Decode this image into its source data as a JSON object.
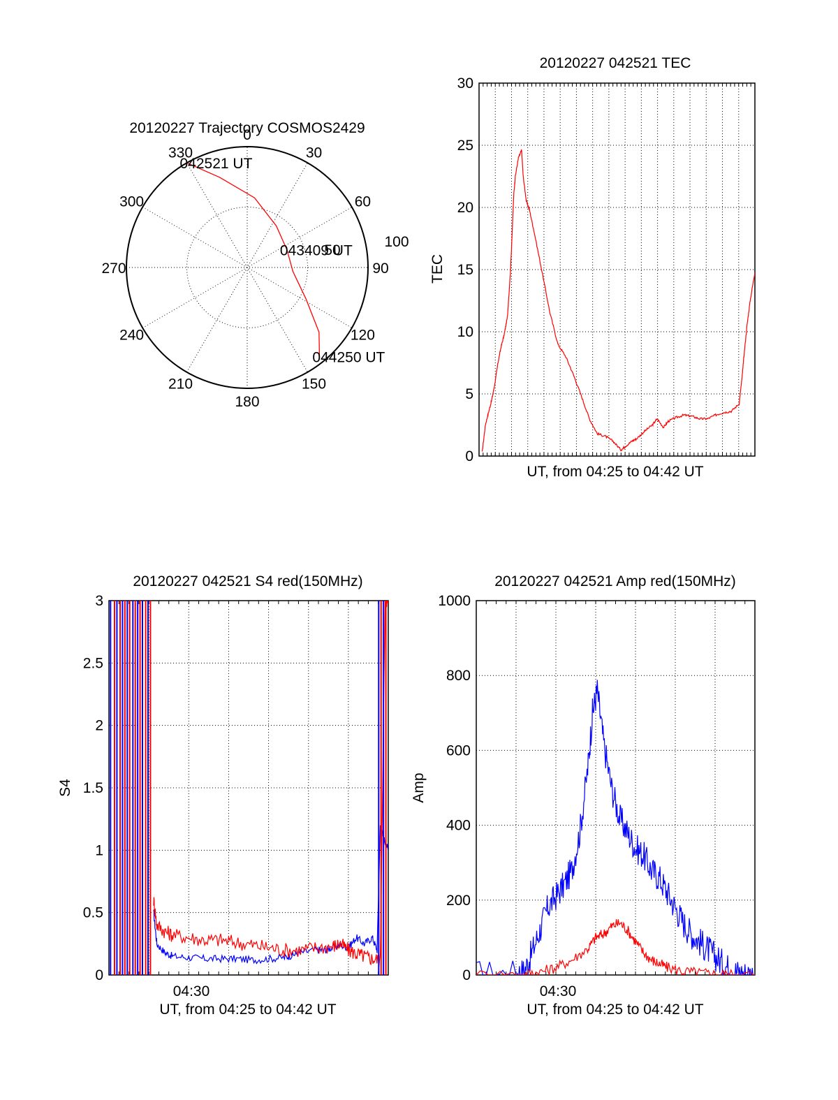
{
  "colors": {
    "red": "#ff0000",
    "blue": "#0000ff",
    "axis": "#000000"
  },
  "chart_data": [
    {
      "id": "trajectory",
      "type": "polar",
      "title": "20120227 Trajectory COSMOS2429",
      "azimuth_labels": [
        "0",
        "30",
        "60",
        "90",
        "120",
        "150",
        "180",
        "210",
        "240",
        "270",
        "300",
        "330"
      ],
      "radial_labels": [
        "50",
        "100"
      ],
      "grid": true,
      "track": [
        {
          "az": 330,
          "zen": 100
        },
        {
          "az": 343,
          "zen": 78
        },
        {
          "az": 6,
          "zen": 58
        },
        {
          "az": 35,
          "zen": 42
        },
        {
          "az": 66,
          "zen": 36
        },
        {
          "az": 95,
          "zen": 38
        },
        {
          "az": 118,
          "zen": 55
        },
        {
          "az": 132,
          "zen": 80
        },
        {
          "az": 141,
          "zen": 95
        }
      ],
      "annotations": [
        {
          "text": "042521 UT",
          "az": 330,
          "zen": 100
        },
        {
          "text": "043409 UT",
          "az": 66,
          "zen": 36
        },
        {
          "text": "044250 UT",
          "az": 141,
          "zen": 95
        }
      ]
    },
    {
      "id": "tec",
      "type": "line",
      "title": "20120227 042521 TEC",
      "xlabel": "UT, from 04:25 to 04:42 UT",
      "ylabel": "TEC",
      "xlim": [
        0,
        17.5
      ],
      "ylim": [
        0,
        30
      ],
      "yticks": [
        "0",
        "5",
        "10",
        "15",
        "20",
        "25",
        "30"
      ],
      "grid": true,
      "series": [
        {
          "color": "#ff0000",
          "x": [
            0.2,
            0.4,
            0.6,
            0.8,
            1.0,
            1.2,
            1.4,
            1.6,
            1.8,
            2.0,
            2.2,
            2.3,
            2.5,
            2.7,
            2.8,
            3.0,
            3.2,
            3.5,
            4.0,
            4.5,
            5.0,
            5.5,
            6.0,
            6.5,
            7.0,
            7.5,
            8.0,
            8.5,
            9.0,
            9.3,
            9.7,
            10.0,
            10.5,
            11.0,
            11.3,
            11.7,
            12.0,
            12.5,
            13.0,
            13.5,
            14.0,
            14.5,
            15.0,
            15.5,
            16.0,
            16.5,
            16.7,
            16.8,
            17.0,
            17.2,
            17.5
          ],
          "y": [
            0.3,
            2.5,
            3.5,
            4.5,
            5.8,
            7.5,
            8.8,
            9.8,
            11.2,
            15.0,
            21.0,
            22.5,
            24.0,
            24.6,
            22.5,
            20.5,
            19.8,
            18.0,
            14.8,
            11.5,
            9.0,
            8.0,
            6.5,
            4.8,
            3.0,
            1.8,
            1.6,
            1.2,
            0.5,
            0.8,
            1.2,
            1.4,
            2.0,
            2.5,
            3.0,
            2.3,
            2.8,
            3.1,
            3.3,
            3.2,
            3.0,
            3.0,
            3.3,
            3.5,
            3.6,
            4.2,
            6.5,
            8.0,
            10.5,
            12.5,
            14.8
          ]
        }
      ]
    },
    {
      "id": "s4",
      "type": "line",
      "title": "20120227 042521 S4 red(150MHz)",
      "xlabel": "UT, from 04:25 to 04:42 UT",
      "ylabel": "S4",
      "xtick_label": "04:30",
      "xlim": [
        0,
        17.5
      ],
      "ylim": [
        0,
        3
      ],
      "yticks": [
        "0",
        "0.5",
        "1",
        "1.5",
        "2",
        "2.5",
        "3"
      ],
      "grid": true,
      "series": [
        {
          "color": "#0000ff",
          "x": [
            2.8,
            3.0,
            3.5,
            4.0,
            5.0,
            6.0,
            7.0,
            8.0,
            9.0,
            10.0,
            11.0,
            11.5,
            12.0,
            13.0,
            13.5,
            14.0,
            14.5,
            15.0,
            15.5,
            16.0,
            16.5,
            16.8,
            17.0,
            17.2,
            17.5
          ],
          "y": [
            0.5,
            0.25,
            0.18,
            0.15,
            0.14,
            0.13,
            0.13,
            0.13,
            0.12,
            0.13,
            0.14,
            0.16,
            0.18,
            0.2,
            0.2,
            0.22,
            0.24,
            0.22,
            0.3,
            0.25,
            0.3,
            0.2,
            1.2,
            1.1,
            1.0
          ]
        },
        {
          "color": "#ff0000",
          "x": [
            2.8,
            3.0,
            3.5,
            4.0,
            5.0,
            6.0,
            7.0,
            8.0,
            9.0,
            10.0,
            11.0,
            12.0,
            13.0,
            14.0,
            14.5,
            15.0,
            15.5,
            16.0,
            16.5,
            17.0,
            17.3,
            17.5
          ],
          "y": [
            0.6,
            0.4,
            0.35,
            0.32,
            0.3,
            0.28,
            0.28,
            0.26,
            0.24,
            0.22,
            0.2,
            0.2,
            0.22,
            0.23,
            0.25,
            0.2,
            0.17,
            0.15,
            0.13,
            0.12,
            3.0,
            3.0
          ]
        }
      ]
    },
    {
      "id": "amp",
      "type": "line",
      "title": "20120227 042521 Amp red(150MHz)",
      "xlabel": "UT, from 04:25 to 04:42 UT",
      "ylabel": "Amp",
      "xtick_label": "04:30",
      "xlim": [
        0,
        17.5
      ],
      "ylim": [
        0,
        1000
      ],
      "yticks": [
        "0",
        "200",
        "400",
        "600",
        "800",
        "1000"
      ],
      "grid": true,
      "series": [
        {
          "color": "#0000ff",
          "x": [
            0,
            2.5,
            3.0,
            3.5,
            4.0,
            4.5,
            5.0,
            5.5,
            6.0,
            6.5,
            7.0,
            7.3,
            7.6,
            8.0,
            8.5,
            9.0,
            9.5,
            10.0,
            10.5,
            11.0,
            11.5,
            12.0,
            12.5,
            13.0,
            13.5,
            14.0,
            14.5,
            15.0,
            15.5,
            16.0,
            16.5,
            17.0,
            17.5
          ],
          "y": [
            2,
            3,
            10,
            60,
            120,
            180,
            210,
            240,
            280,
            380,
            550,
            700,
            760,
            620,
            500,
            420,
            380,
            340,
            320,
            280,
            260,
            220,
            180,
            140,
            110,
            90,
            70,
            50,
            30,
            15,
            6,
            3,
            2
          ]
        },
        {
          "color": "#ff0000",
          "x": [
            0,
            3.0,
            4.0,
            5.0,
            6.0,
            7.0,
            7.5,
            8.0,
            8.5,
            9.0,
            9.5,
            10.0,
            10.5,
            11.0,
            11.5,
            12.0,
            13.0,
            14.0,
            15.0,
            16.0,
            17.5
          ],
          "y": [
            1,
            2,
            8,
            20,
            40,
            70,
            100,
            110,
            130,
            140,
            120,
            90,
            60,
            40,
            30,
            20,
            10,
            6,
            3,
            1,
            1
          ]
        }
      ]
    }
  ]
}
